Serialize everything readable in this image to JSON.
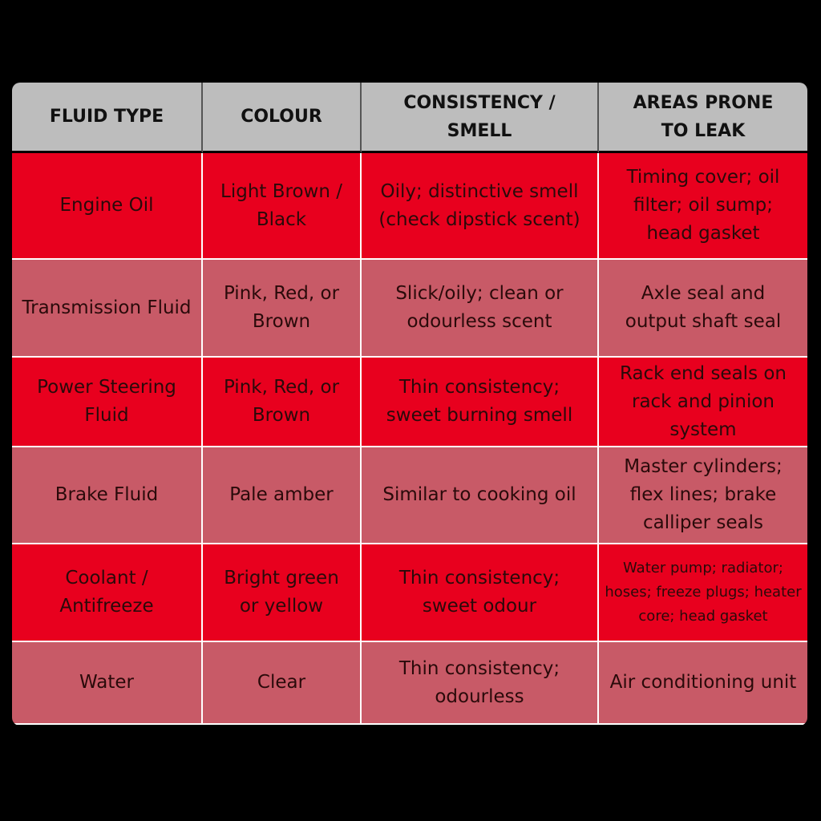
{
  "table": {
    "header": [
      "FLUID TYPE",
      "COLOUR",
      "CONSISTENCY / SMELL",
      "AREAS PRONE TO LEAK"
    ],
    "rows": [
      [
        "Engine Oil",
        "Light Brown / Black",
        "Oily; distinctive smell (check dipstick scent)",
        "Timing cover; oil filter; oil sump; head gasket"
      ],
      [
        "Transmission Fluid",
        "Pink, Red, or Brown",
        "Slick/oily; clean or odourless scent",
        "Axle seal and output shaft seal"
      ],
      [
        "Power Steering Fluid",
        "Pink, Red, or Brown",
        "Thin consistency; sweet burning smell",
        "Rack end seals on rack and pinion system"
      ],
      [
        "Brake Fluid",
        "Pale amber",
        "Similar to cooking oil",
        "Master cylinders; flex lines; brake calliper seals"
      ],
      [
        "Coolant / Antifreeze",
        "Bright green or yellow",
        "Thin consistency; sweet odour",
        "Water pump; radiator; hoses; freeze plugs; heater core; head gasket"
      ],
      [
        "Water",
        "Clear",
        "Thin consistency; odourless",
        "Air conditioning unit"
      ]
    ]
  }
}
